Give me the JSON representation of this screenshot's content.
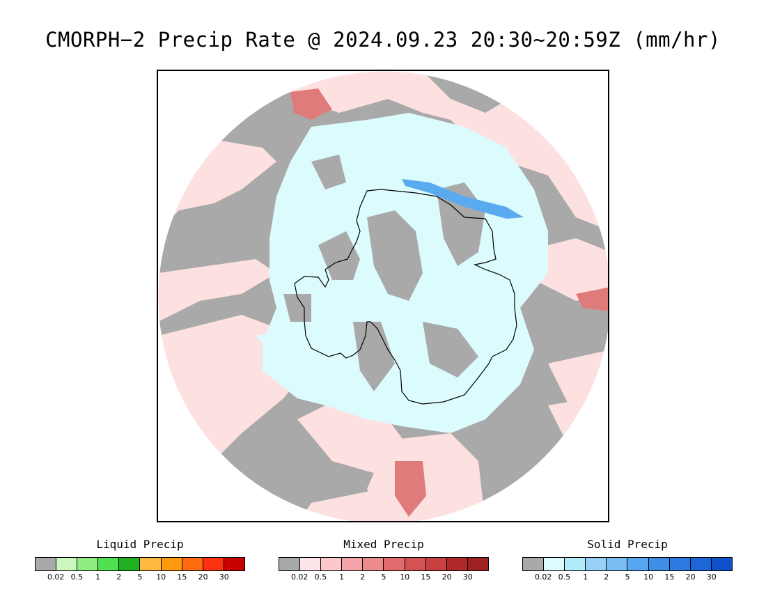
{
  "title": "CMORPH−2 Precip Rate @ 2024.09.23 20:30~20:59Z (mm/hr)",
  "colors": {
    "no_precip": "#a9a9a9",
    "mixed_light": "#fde0e0",
    "solid_light": "#dcfbfd",
    "solid_mid": "#5aaaf0",
    "mixed_mid": "#e07b7b",
    "coast": "#000000"
  },
  "legends": [
    {
      "title": "Liquid Precip",
      "colors": [
        "#a9a9a9",
        "#ccf8c0",
        "#90ee80",
        "#50e050",
        "#20b020",
        "#fdb840",
        "#fd9a10",
        "#fd6a10",
        "#fd3010",
        "#c80000"
      ],
      "ticks": [
        "0.02",
        "0.5",
        "1",
        "2",
        "5",
        "10",
        "15",
        "20",
        "30"
      ]
    },
    {
      "title": "Mixed Precip",
      "colors": [
        "#a9a9a9",
        "#fde4e6",
        "#fcc8cc",
        "#f4a4a8",
        "#ec8a8c",
        "#e06a6c",
        "#d55254",
        "#c84040",
        "#b02828",
        "#a02020"
      ],
      "ticks": [
        "0.02",
        "0.5",
        "1",
        "2",
        "5",
        "10",
        "15",
        "20",
        "30"
      ]
    },
    {
      "title": "Solid Precip",
      "colors": [
        "#a9a9a9",
        "#ddfbfd",
        "#b2ecfa",
        "#96d2f8",
        "#78bcf4",
        "#56a6f0",
        "#3c8ee8",
        "#2a7ae0",
        "#1c66d8",
        "#1050c8"
      ],
      "ticks": [
        "0.02",
        "0.5",
        "1",
        "2",
        "5",
        "10",
        "15",
        "20",
        "30"
      ]
    }
  ]
}
